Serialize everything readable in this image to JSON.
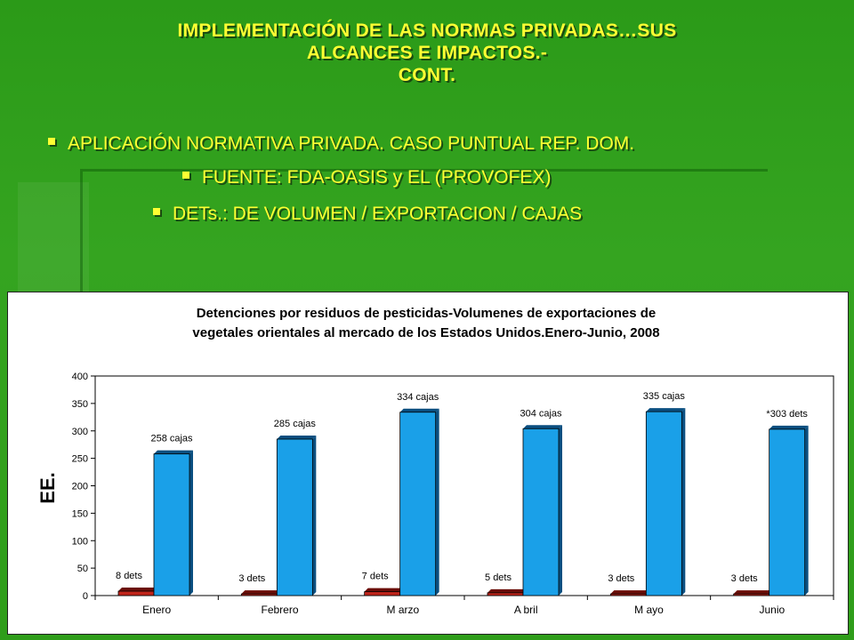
{
  "slide": {
    "title_lines": [
      "IMPLEMENTACIÓN DE LAS NORMAS PRIVADAS…SUS",
      "ALCANCES E IMPACTOS.-",
      "CONT."
    ],
    "bullets": [
      "APLICACIÓN NORMATIVA PRIVADA.  CASO PUNTUAL REP. DOM.",
      "FUENTE:  FDA-OASIS  y  EL (PROVOFEX)",
      "DETs.:  DE VOLUMEN / EXPORTACION / CAJAS"
    ]
  },
  "colors": {
    "background": "#2f9e1c",
    "title_text": "#ffff33",
    "dets_bar": "#c0241a",
    "cajas_bar": "#1aa0e8"
  },
  "chart_data": {
    "type": "bar",
    "title": "Detenciones por residuos de pesticidas-Volumenes de exportaciones de vegetales orientales al mercado de los Estados Unidos.Enero-Junio, 2008",
    "title_lines": [
      "Detenciones por residuos de pesticidas-Volumenes de exportaciones de",
      "vegetales orientales al mercado de los Estados Unidos.Enero-Junio, 2008"
    ],
    "ylabel": "EE.",
    "ylim": [
      0,
      400
    ],
    "yticks": [
      0,
      50,
      100,
      150,
      200,
      250,
      300,
      350,
      400
    ],
    "categories": [
      "Enero",
      "Febrero",
      "M arzo",
      "A bril",
      "M ayo",
      "Junio"
    ],
    "series": [
      {
        "values": [
          8,
          3,
          7,
          5,
          3,
          3
        ],
        "labels": [
          "8 dets",
          "3 dets",
          "7 dets",
          "5 dets",
          "3 dets",
          "3 dets"
        ]
      },
      {
        "values": [
          258,
          285,
          334,
          304,
          335,
          303
        ],
        "labels": [
          "258 cajas",
          "285 cajas",
          "334 cajas",
          "304 cajas",
          "335 cajas",
          "*303 dets"
        ]
      }
    ],
    "grid": false
  }
}
